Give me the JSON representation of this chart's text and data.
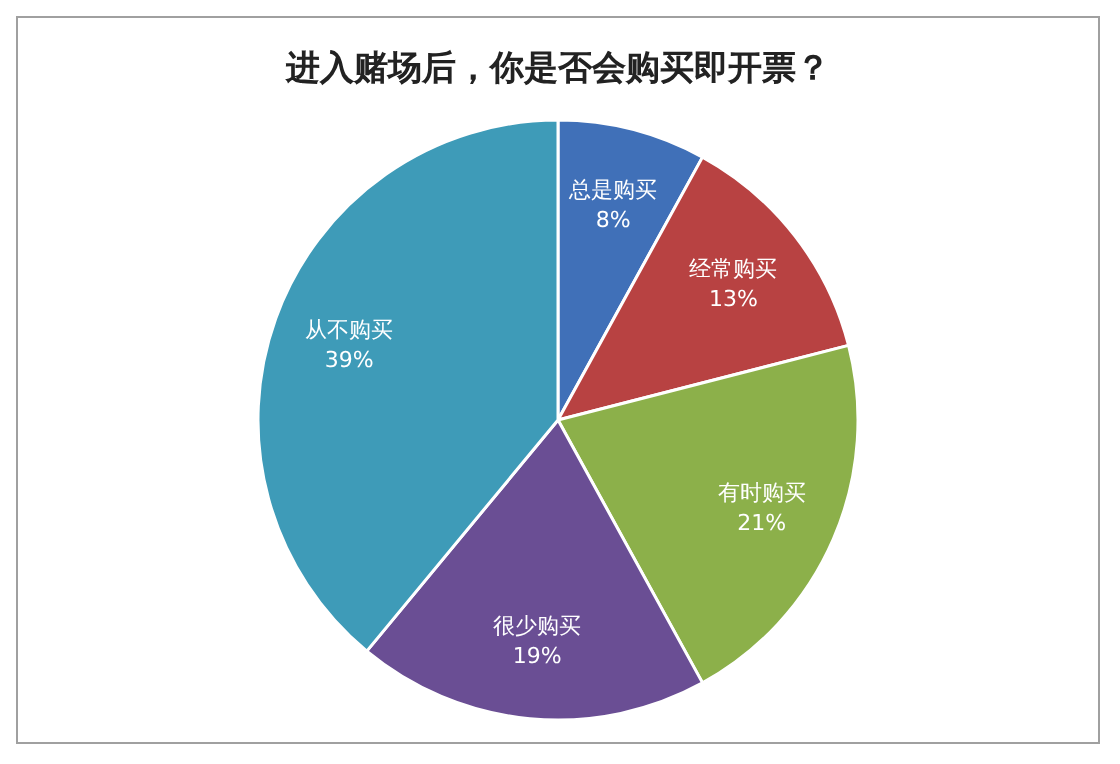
{
  "chart_data": {
    "type": "pie",
    "title": "进入赌场后，你是否会购买即开票？",
    "categories": [
      "总是购买",
      "经常购买",
      "有时购买",
      "很少购买",
      "从不购买"
    ],
    "values": [
      8,
      13,
      21,
      19,
      39
    ],
    "colors": [
      "#4070b8",
      "#b84242",
      "#8cb04a",
      "#6a4e94",
      "#3e9bb8"
    ],
    "value_labels": [
      "8%",
      "13%",
      "21%",
      "19%",
      "39%"
    ],
    "legend": false
  }
}
